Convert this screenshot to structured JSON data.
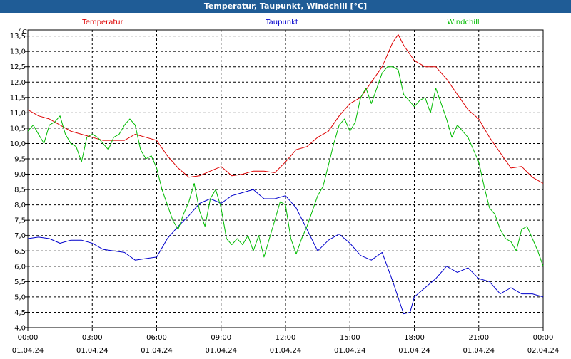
{
  "window": {
    "title": "Temperatur, Taupunkt, Windchill [°C]"
  },
  "chart_data": {
    "type": "line",
    "title": "Temperatur, Taupunkt, Windchill [°C]",
    "yunit": "°C",
    "ylim": [
      4.0,
      13.7
    ],
    "yticks": [
      "4,0",
      "4,5",
      "5,0",
      "5,5",
      "6,0",
      "6,5",
      "7,0",
      "7,5",
      "8,0",
      "8,5",
      "9,0",
      "9,5",
      "10,0",
      "10,5",
      "11,0",
      "11,5",
      "12,0",
      "12,5",
      "13,0",
      "13,5"
    ],
    "xlim": [
      0,
      24
    ],
    "xticks": [
      {
        "time": "00:00",
        "date": "01.04.24"
      },
      {
        "time": "03:00",
        "date": "01.04.24"
      },
      {
        "time": "06:00",
        "date": "01.04.24"
      },
      {
        "time": "09:00",
        "date": "01.04.24"
      },
      {
        "time": "12:00",
        "date": "01.04.24"
      },
      {
        "time": "15:00",
        "date": "01.04.24"
      },
      {
        "time": "18:00",
        "date": "01.04.24"
      },
      {
        "time": "21:00",
        "date": "01.04.24"
      },
      {
        "time": "00:00",
        "date": "02.04.24"
      }
    ],
    "grid": true,
    "series": [
      {
        "name": "Temperatur",
        "color": "#dd0000",
        "x": [
          0,
          0.25,
          0.5,
          1,
          1.5,
          2,
          2.5,
          3,
          3.5,
          4,
          4.5,
          5,
          5.5,
          6,
          6.5,
          7,
          7.5,
          8,
          8.5,
          9,
          9.5,
          10,
          10.5,
          11,
          11.5,
          12,
          12.5,
          13,
          13.5,
          14,
          14.5,
          15,
          15.5,
          16,
          16.5,
          17,
          17.25,
          17.5,
          18,
          18.5,
          19,
          19.5,
          20,
          20.5,
          21,
          21.5,
          22,
          22.5,
          23,
          23.5,
          24
        ],
        "values": [
          11.1,
          11.0,
          10.9,
          10.8,
          10.6,
          10.4,
          10.3,
          10.2,
          10.1,
          10.1,
          10.1,
          10.3,
          10.2,
          10.1,
          9.6,
          9.2,
          8.9,
          8.95,
          9.1,
          9.25,
          8.95,
          9.0,
          9.1,
          9.1,
          9.05,
          9.4,
          9.8,
          9.9,
          10.2,
          10.4,
          10.9,
          11.3,
          11.5,
          12.0,
          12.5,
          13.3,
          13.55,
          13.2,
          12.7,
          12.5,
          12.5,
          12.1,
          11.6,
          11.1,
          10.8,
          10.2,
          9.7,
          9.2,
          9.25,
          8.9,
          8.7
        ]
      },
      {
        "name": "Taupunkt",
        "color": "#0000cc",
        "x": [
          0,
          0.5,
          1,
          1.5,
          2,
          2.5,
          3,
          3.5,
          4,
          4.5,
          5,
          5.5,
          6,
          6.5,
          7,
          7.5,
          8,
          8.5,
          9,
          9.5,
          10,
          10.5,
          11,
          11.5,
          12,
          12.5,
          13,
          13.5,
          14,
          14.5,
          15,
          15.5,
          16,
          16.5,
          17,
          17.5,
          17.8,
          18,
          18.5,
          19,
          19.5,
          20,
          20.5,
          21,
          21.5,
          22,
          22.5,
          23,
          23.5,
          24
        ],
        "values": [
          6.9,
          6.95,
          6.9,
          6.75,
          6.85,
          6.85,
          6.75,
          6.55,
          6.5,
          6.45,
          6.2,
          6.25,
          6.3,
          6.9,
          7.3,
          7.65,
          8.05,
          8.2,
          8.05,
          8.3,
          8.4,
          8.5,
          8.2,
          8.2,
          8.3,
          7.9,
          7.2,
          6.5,
          6.85,
          7.05,
          6.75,
          6.35,
          6.2,
          6.45,
          5.5,
          4.45,
          4.5,
          5.0,
          5.3,
          5.6,
          6.0,
          5.8,
          5.95,
          5.6,
          5.5,
          5.1,
          5.3,
          5.1,
          5.1,
          5.0
        ]
      },
      {
        "name": "Windchill",
        "color": "#00bb00",
        "x": [
          0,
          0.25,
          0.5,
          0.75,
          1,
          1.25,
          1.5,
          1.75,
          2,
          2.25,
          2.5,
          2.75,
          3,
          3.25,
          3.5,
          3.75,
          4,
          4.25,
          4.5,
          4.75,
          5,
          5.25,
          5.5,
          5.75,
          6,
          6.25,
          6.5,
          6.75,
          7,
          7.25,
          7.5,
          7.75,
          8,
          8.25,
          8.5,
          8.75,
          9,
          9.25,
          9.5,
          9.75,
          10,
          10.25,
          10.5,
          10.75,
          11,
          11.25,
          11.5,
          11.75,
          12,
          12.25,
          12.5,
          12.75,
          13,
          13.25,
          13.5,
          13.75,
          14,
          14.25,
          14.5,
          14.75,
          15,
          15.25,
          15.5,
          15.75,
          16,
          16.25,
          16.5,
          16.75,
          17,
          17.25,
          17.5,
          17.75,
          18,
          18.25,
          18.5,
          18.75,
          19,
          19.25,
          19.5,
          19.75,
          20,
          20.25,
          20.5,
          20.75,
          21,
          21.25,
          21.5,
          21.75,
          22,
          22.25,
          22.5,
          22.75,
          23,
          23.25,
          23.5,
          23.75,
          24
        ],
        "values": [
          10.4,
          10.6,
          10.3,
          10.0,
          10.6,
          10.7,
          10.9,
          10.3,
          10.0,
          9.9,
          9.4,
          10.2,
          10.3,
          10.2,
          10.0,
          9.8,
          10.2,
          10.3,
          10.6,
          10.8,
          10.6,
          9.8,
          9.5,
          9.6,
          9.2,
          8.5,
          8.0,
          7.5,
          7.2,
          7.7,
          8.1,
          8.7,
          7.8,
          7.3,
          8.2,
          8.5,
          7.9,
          6.9,
          6.7,
          6.9,
          6.7,
          7.0,
          6.5,
          7.0,
          6.3,
          6.9,
          7.5,
          8.1,
          8.0,
          6.9,
          6.4,
          6.9,
          7.3,
          7.8,
          8.3,
          8.6,
          9.3,
          10.0,
          10.6,
          10.8,
          10.4,
          10.7,
          11.5,
          11.8,
          11.3,
          11.8,
          12.3,
          12.5,
          12.5,
          12.4,
          11.6,
          11.4,
          11.2,
          11.4,
          11.5,
          11.0,
          11.8,
          11.3,
          10.8,
          10.2,
          10.6,
          10.4,
          10.2,
          9.8,
          9.4,
          8.6,
          7.9,
          7.7,
          7.2,
          6.9,
          6.8,
          6.5,
          7.2,
          7.3,
          6.9,
          6.5,
          6.0
        ]
      }
    ]
  }
}
